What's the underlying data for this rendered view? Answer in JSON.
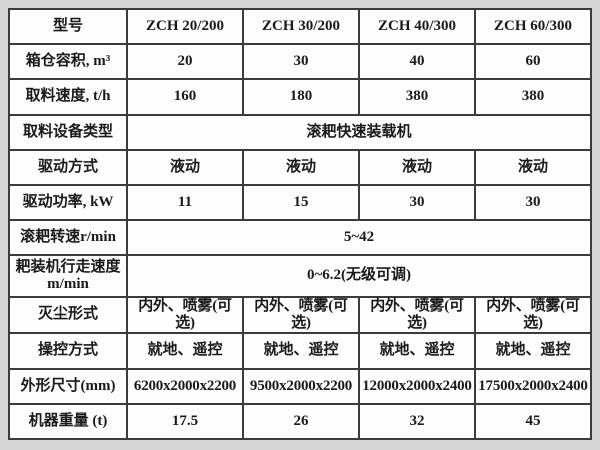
{
  "colors": {
    "page_background": "#d6d6d6",
    "table_background": "#fdfdfd",
    "border": "#3b3b3b",
    "text": "#1a1a1a"
  },
  "table": {
    "rows": [
      {
        "label": "型号",
        "cells": [
          "ZCH 20/200",
          "ZCH 30/200",
          "ZCH 40/300",
          "ZCH 60/300"
        ]
      },
      {
        "label": "箱仓容积, m³",
        "cells": [
          "20",
          "30",
          "40",
          "60"
        ]
      },
      {
        "label": "取料速度, t/h",
        "cells": [
          "160",
          "180",
          "380",
          "380"
        ]
      },
      {
        "label": "取料设备类型",
        "span": "滚耙快速装载机"
      },
      {
        "label": "驱动方式",
        "cells": [
          "液动",
          "液动",
          "液动",
          "液动"
        ]
      },
      {
        "label": "驱动功率, kW",
        "cells": [
          "11",
          "15",
          "30",
          "30"
        ]
      },
      {
        "label": "滚耙转速r/min",
        "span": "5~42"
      },
      {
        "label": "耙装机行走速度\nm/min",
        "span": "0~6.2(无级可调)"
      },
      {
        "label": "灭尘形式",
        "cells": [
          "内外、喷雾(可选)",
          "内外、喷雾(可选)",
          "内外、喷雾(可选)",
          "内外、喷雾(可选)"
        ]
      },
      {
        "label": "操控方式",
        "cells": [
          "就地、遥控",
          "就地、遥控",
          "就地、遥控",
          "就地、遥控"
        ]
      },
      {
        "label": "外形尺寸(mm)",
        "cells": [
          "6200x2000x2200",
          "9500x2000x2200",
          "12000x2000x2400",
          "17500x2000x2400"
        ]
      },
      {
        "label": "机器重量 (t)",
        "cells": [
          "17.5",
          "26",
          "32",
          "45"
        ]
      }
    ]
  }
}
